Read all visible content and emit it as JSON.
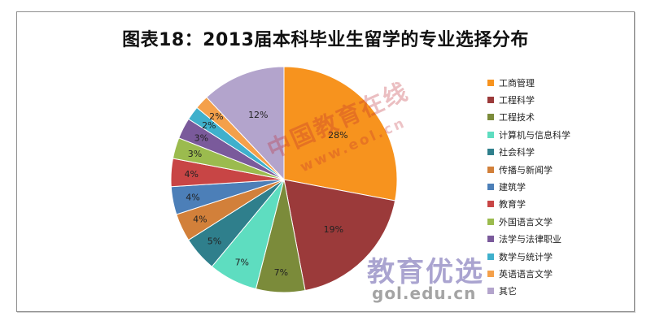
{
  "title": "图表18：2013届本科毕业生留学的专业选择分布",
  "watermarks": {
    "eol_cn": "中国教育在线",
    "eol_url": "www.eol.cn",
    "youxuan": "教育优选",
    "youxuan_url": "gol.edu.cn"
  },
  "chart_data": {
    "type": "pie",
    "title": "图表18：2013届本科毕业生留学的专业选择分布",
    "legend": "right",
    "slices": [
      {
        "name": "工商管理",
        "value": 28,
        "label": "28%",
        "color": "#F7931E"
      },
      {
        "name": "工程科学",
        "value": 19,
        "label": "19%",
        "color": "#9B3A3A"
      },
      {
        "name": "工程技术",
        "value": 7,
        "label": "7%",
        "color": "#7B8B3A"
      },
      {
        "name": "计算机与信息科学",
        "value": 7,
        "label": "7%",
        "color": "#5EDDC0"
      },
      {
        "name": "社会科学",
        "value": 5,
        "label": "5%",
        "color": "#2F7F8C"
      },
      {
        "name": "传播与新闻学",
        "value": 4,
        "label": "4%",
        "color": "#D2803A"
      },
      {
        "name": "建筑学",
        "value": 4,
        "label": "4%",
        "color": "#4C7FB8"
      },
      {
        "name": "教育学",
        "value": 4,
        "label": "4%",
        "color": "#C84545"
      },
      {
        "name": "外国语言文学",
        "value": 3,
        "label": "3%",
        "color": "#9BBB4E"
      },
      {
        "name": "法学与法律职业",
        "value": 3,
        "label": "3%",
        "color": "#7A5A9B"
      },
      {
        "name": "数学与统计学",
        "value": 2,
        "label": "2%",
        "color": "#3FB0CC"
      },
      {
        "name": "英语语言文学",
        "value": 2,
        "label": "2%",
        "color": "#F4A04A"
      },
      {
        "name": "其它",
        "value": 12,
        "label": "12%",
        "color": "#B3A4CC"
      }
    ]
  }
}
